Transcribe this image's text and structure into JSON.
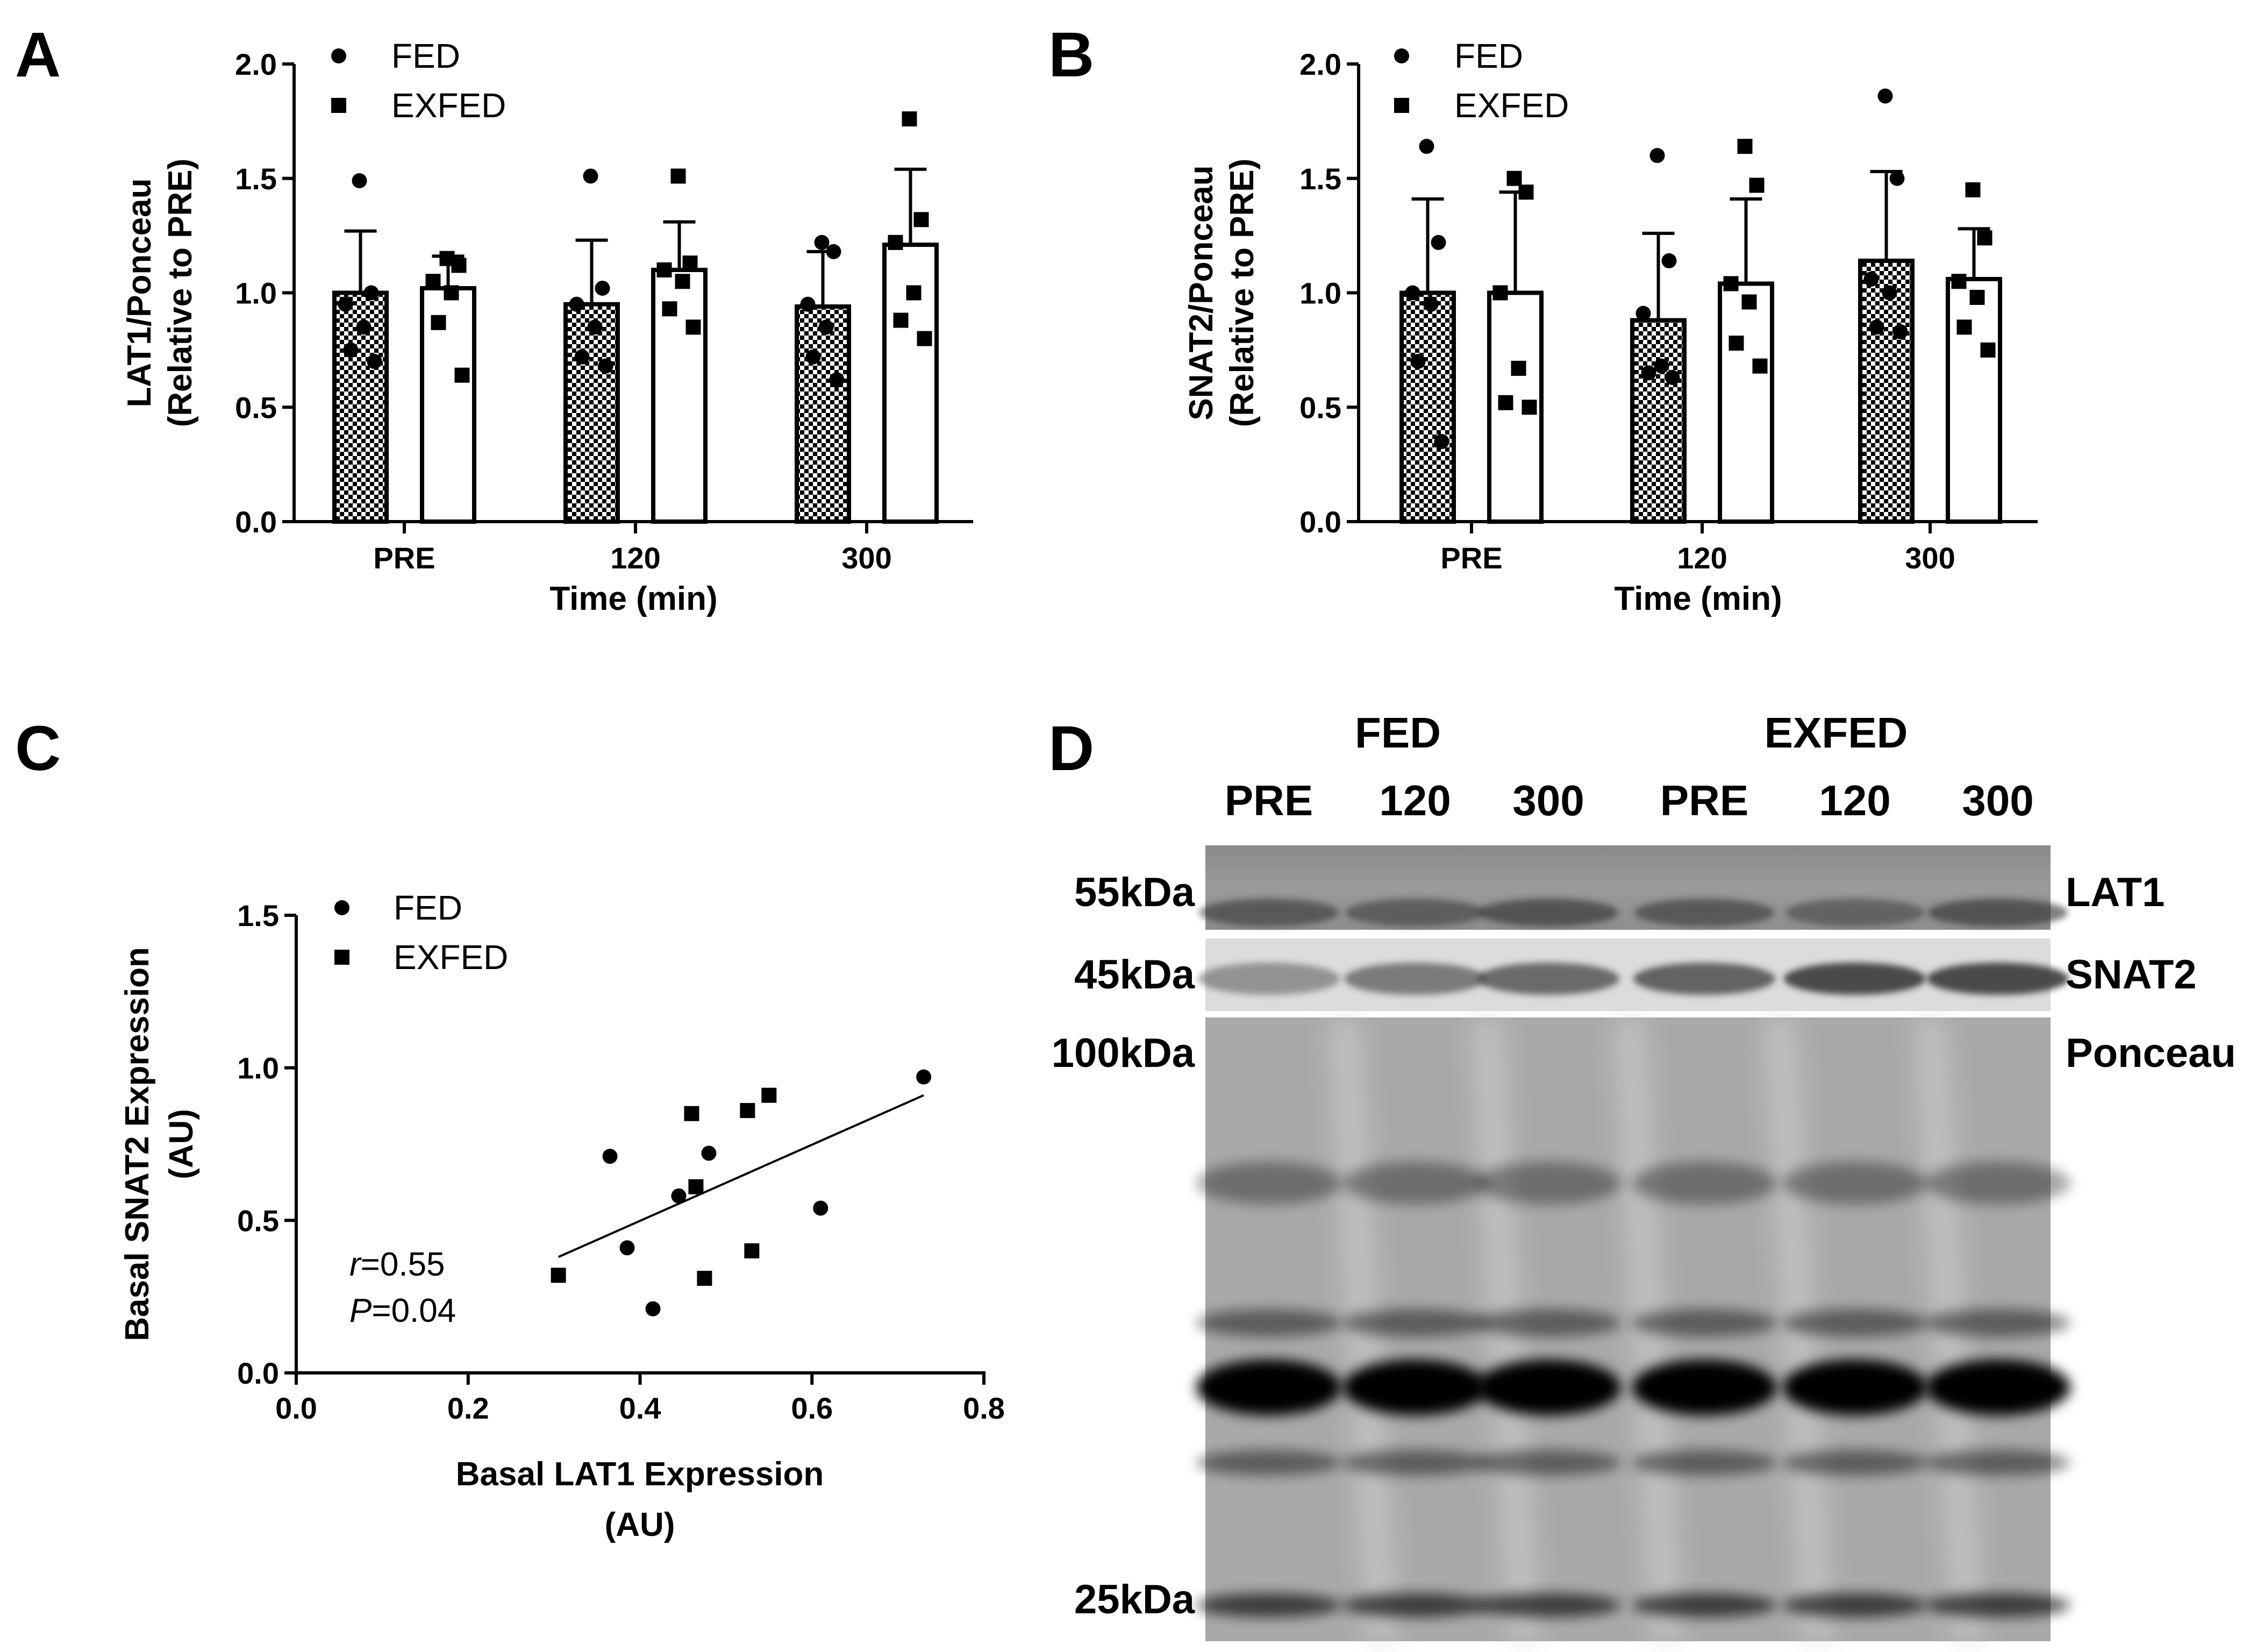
{
  "chart_data": [
    {
      "panel": "A",
      "type": "bar",
      "categories": [
        "PRE",
        "120",
        "300"
      ],
      "xlabel": "Time (min)",
      "ylabel_line1": "LAT1/Ponceau",
      "ylabel_line2": "(Relative to PRE)",
      "ylim": [
        0,
        2.0
      ],
      "yticks": [
        "0.0",
        "0.5",
        "1.0",
        "1.5",
        "2.0"
      ],
      "legend": {
        "placement": "top-left",
        "entries": [
          "FED",
          "EXFED"
        ]
      },
      "series": [
        {
          "name": "FED",
          "fill": "checkered",
          "marker": "circle",
          "values": [
            1.0,
            0.95,
            0.94
          ],
          "err": [
            0.27,
            0.28,
            0.24
          ],
          "points": [
            [
              1.49,
              1.0,
              0.95,
              0.85,
              0.75,
              0.7
            ],
            [
              1.51,
              1.02,
              0.95,
              0.85,
              0.72,
              0.68
            ],
            [
              1.22,
              1.18,
              0.95,
              0.85,
              0.72,
              0.62
            ]
          ]
        },
        {
          "name": "EXFED",
          "fill": "white",
          "marker": "square",
          "values": [
            1.02,
            1.1,
            1.21
          ],
          "err": [
            0.14,
            0.21,
            0.33
          ],
          "points": [
            [
              1.15,
              1.12,
              1.05,
              1.0,
              0.87,
              0.64
            ],
            [
              1.51,
              1.13,
              1.1,
              1.05,
              0.93,
              0.85
            ],
            [
              1.76,
              1.32,
              1.22,
              1.0,
              0.88,
              0.8
            ]
          ]
        }
      ]
    },
    {
      "panel": "B",
      "type": "bar",
      "categories": [
        "PRE",
        "120",
        "300"
      ],
      "xlabel": "Time (min)",
      "ylabel_line1": "SNAT2/Ponceau",
      "ylabel_line2": "(Relative to PRE)",
      "ylim": [
        0,
        2.0
      ],
      "yticks": [
        "0.0",
        "0.5",
        "1.0",
        "1.5",
        "2.0"
      ],
      "legend": {
        "placement": "top-left",
        "entries": [
          "FED",
          "EXFED"
        ]
      },
      "series": [
        {
          "name": "FED",
          "fill": "checkered",
          "marker": "circle",
          "values": [
            1.0,
            0.88,
            1.14
          ],
          "err": [
            0.41,
            0.38,
            0.39
          ],
          "points": [
            [
              1.64,
              1.22,
              1.0,
              0.95,
              0.7,
              0.35
            ],
            [
              1.6,
              1.14,
              0.91,
              0.68,
              0.65,
              0.63
            ],
            [
              1.86,
              1.5,
              1.06,
              1.0,
              0.85,
              0.83
            ]
          ]
        },
        {
          "name": "EXFED",
          "fill": "white",
          "marker": "square",
          "values": [
            1.0,
            1.04,
            1.06
          ],
          "err": [
            0.44,
            0.37,
            0.22
          ],
          "points": [
            [
              1.5,
              1.44,
              1.0,
              0.67,
              0.52,
              0.5
            ],
            [
              1.64,
              1.47,
              1.04,
              0.96,
              0.78,
              0.68
            ],
            [
              1.45,
              1.24,
              1.05,
              0.98,
              0.85,
              0.75
            ]
          ]
        }
      ]
    },
    {
      "panel": "C",
      "type": "scatter",
      "xlabel_line1": "Basal LAT1 Expression",
      "xlabel_line2": "(AU)",
      "ylabel_line1": "Basal SNAT2 Expression",
      "ylabel_line2": "(AU)",
      "xlim": [
        0,
        0.8
      ],
      "ylim": [
        0,
        1.5
      ],
      "xticks": [
        "0.0",
        "0.2",
        "0.4",
        "0.6",
        "0.8"
      ],
      "yticks": [
        "0.0",
        "0.5",
        "1.0",
        "1.5"
      ],
      "legend": {
        "placement": "top-left",
        "entries": [
          "FED",
          "EXFED"
        ]
      },
      "series": [
        {
          "name": "FED",
          "marker": "circle",
          "x": [
            0.365,
            0.385,
            0.415,
            0.445,
            0.48,
            0.61,
            0.73
          ],
          "y": [
            0.71,
            0.41,
            0.21,
            0.58,
            0.72,
            0.54,
            0.97
          ]
        },
        {
          "name": "EXFED",
          "marker": "square",
          "x": [
            0.305,
            0.46,
            0.465,
            0.475,
            0.525,
            0.53,
            0.55
          ],
          "y": [
            0.32,
            0.85,
            0.61,
            0.31,
            0.86,
            0.4,
            0.91
          ]
        }
      ],
      "regression": {
        "x": [
          0.305,
          0.73
        ],
        "y": [
          0.38,
          0.91
        ]
      },
      "stats": {
        "r_label": "r",
        "r_value": "=0.55",
        "p_label": "P",
        "p_value": "=0.04"
      }
    }
  ],
  "panel_letters": {
    "a": "A",
    "b": "B",
    "c": "C",
    "d": "D"
  },
  "blot": {
    "group_fed": "FED",
    "group_exfed": "EXFED",
    "lanes": [
      "PRE",
      "120",
      "300",
      "PRE",
      "120",
      "300"
    ],
    "markers": {
      "lat1": "55kDa",
      "snat2": "45kDa",
      "ponceau_top": "100kDa",
      "ponceau_bottom": "25kDa"
    },
    "targets": {
      "lat1": "LAT1",
      "snat2": "SNAT2",
      "ponceau": "Ponceau"
    }
  }
}
